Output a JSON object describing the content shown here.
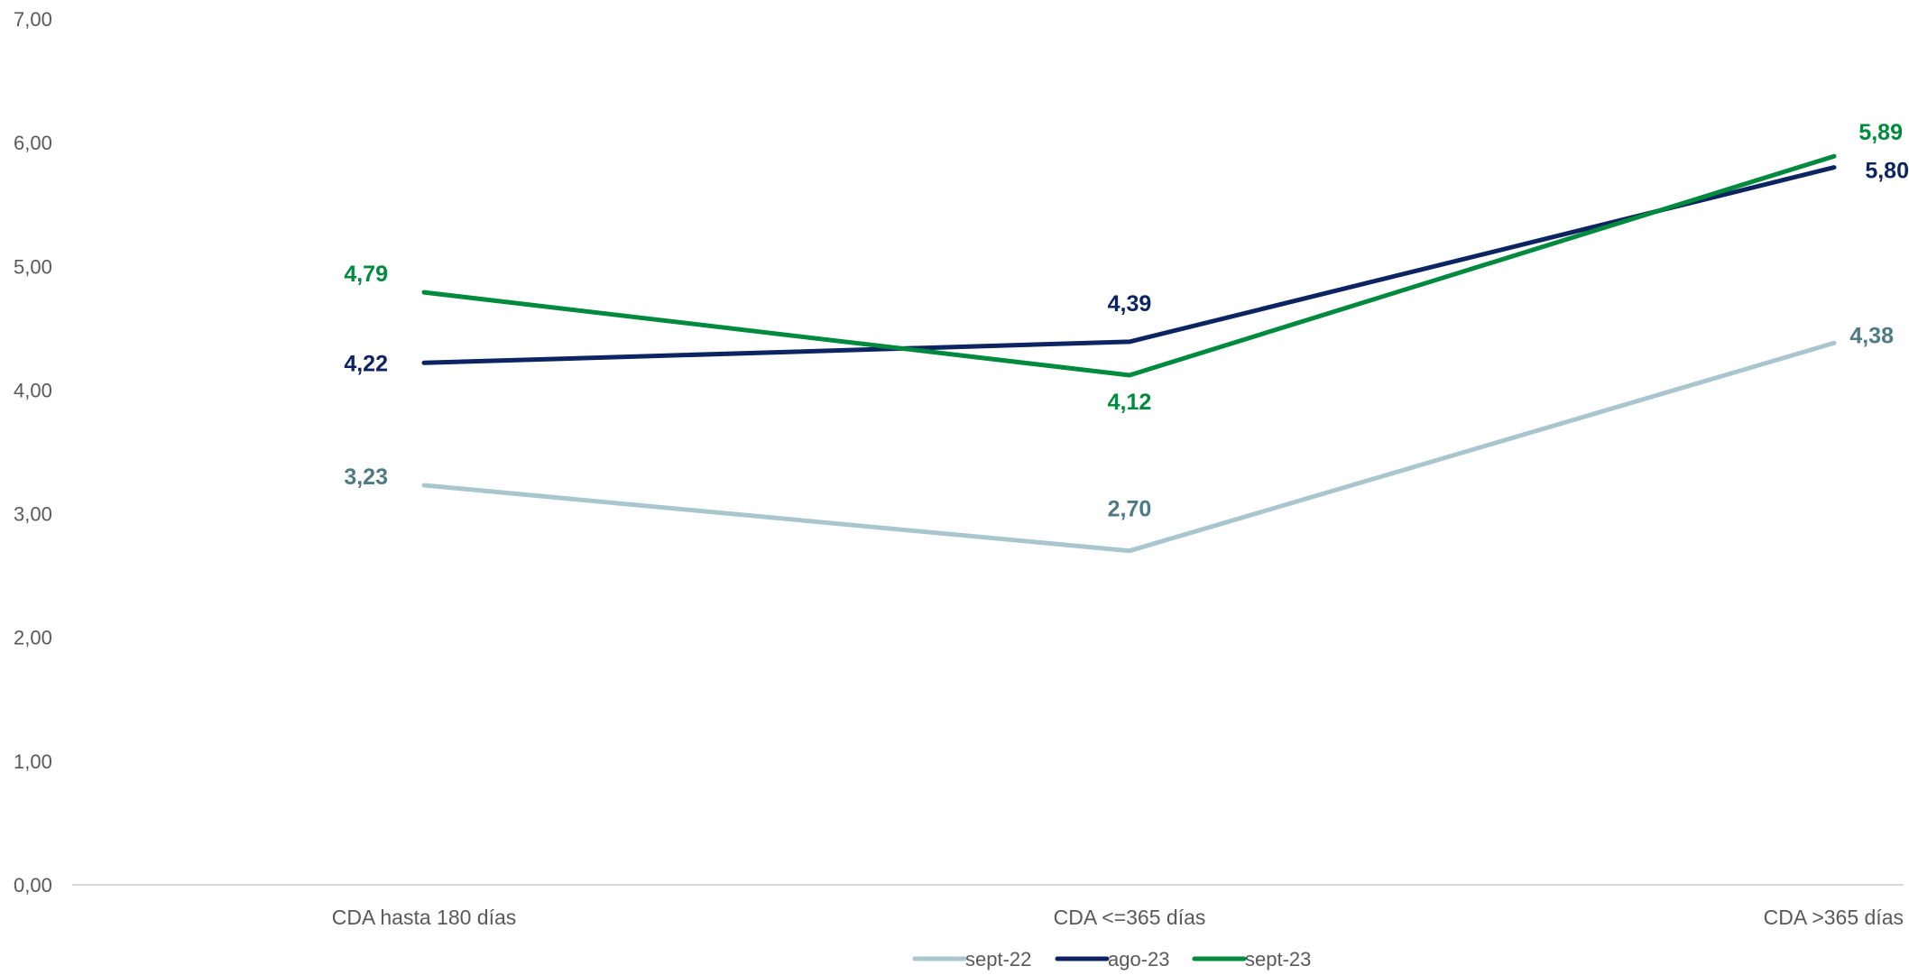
{
  "chart_data": {
    "type": "line",
    "categories": [
      "CDA hasta 180 días",
      "CDA <=365 días",
      "CDA >365 días"
    ],
    "series": [
      {
        "name": "sept-22",
        "values": [
          3.23,
          2.7,
          4.38
        ],
        "color": "#A9C6CF",
        "label_color": "#4D7A85",
        "labels": [
          "3,23",
          "2,70",
          "4,38"
        ]
      },
      {
        "name": "ago-23",
        "values": [
          4.22,
          4.39,
          5.8
        ],
        "color": "#0C2461",
        "label_color": "#0C2461",
        "labels": [
          "4,22",
          "4,39",
          "5,80"
        ]
      },
      {
        "name": "sept-23",
        "values": [
          4.79,
          4.12,
          5.89
        ],
        "color": "#008A3E",
        "label_color": "#008A3E",
        "labels": [
          "4,79",
          "4,12",
          "5,89"
        ]
      }
    ],
    "ylim": [
      0,
      7
    ],
    "yticks": [
      "0,00",
      "1,00",
      "2,00",
      "3,00",
      "4,00",
      "5,00",
      "6,00",
      "7,00"
    ],
    "grid": false,
    "legend_position": "bottom",
    "axis_color": "#D9D9D9"
  }
}
